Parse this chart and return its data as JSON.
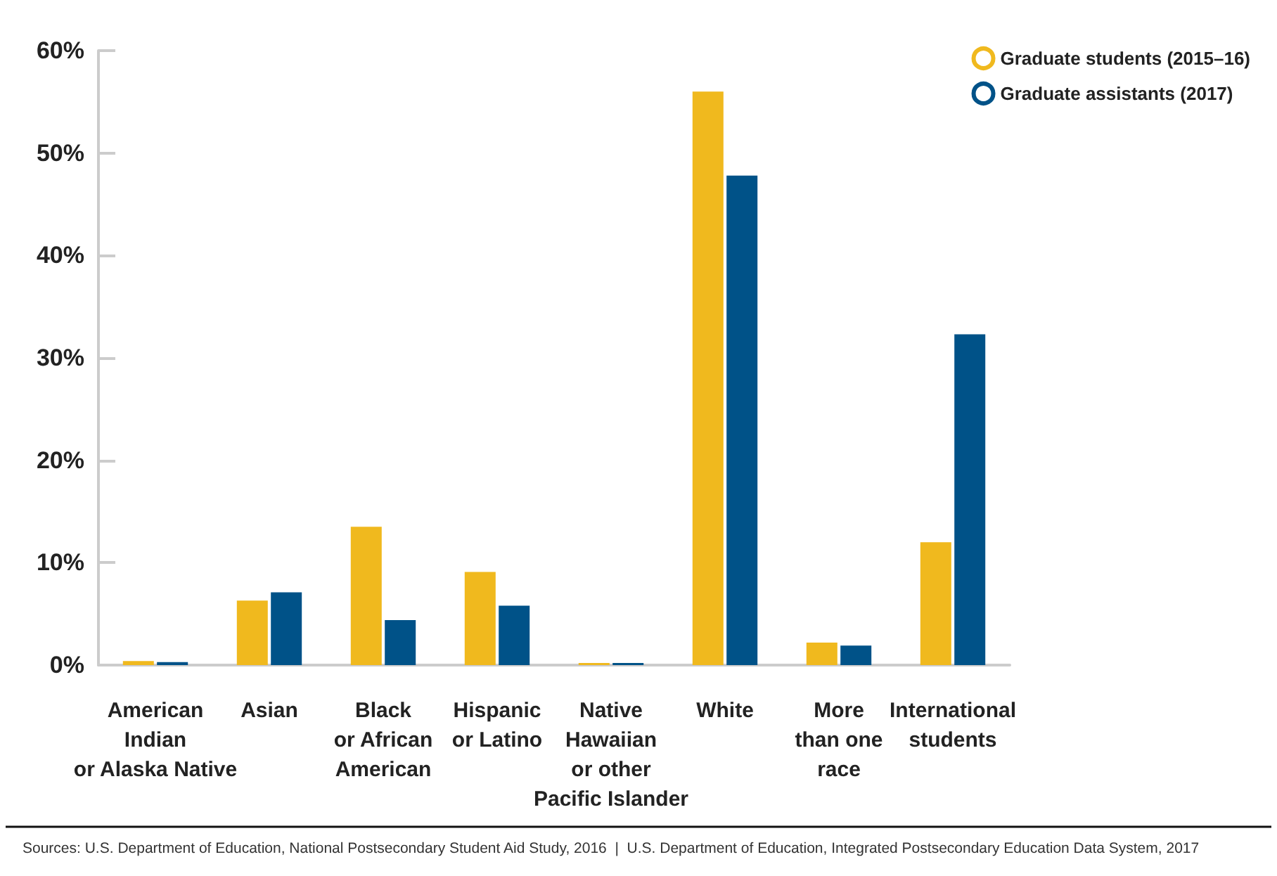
{
  "chart_data": {
    "type": "bar",
    "categories": [
      "American\nIndian\nor Alaska Native",
      "Asian",
      "Black\nor African\nAmerican",
      "Hispanic\nor Latino",
      "Native\nHawaiian\nor other\nPacific Islander",
      "White",
      "More\nthan one\nrace",
      "International\nstudents"
    ],
    "series": [
      {
        "name": "Graduate students (2015–16)",
        "color": "#f0b91e",
        "values": [
          0.4,
          6.3,
          13.5,
          9.1,
          0.2,
          56,
          2.2,
          12
        ]
      },
      {
        "name": "Graduate assistants (2017)",
        "color": "#005288",
        "values": [
          0.3,
          7.1,
          4.4,
          5.8,
          0.2,
          47.8,
          1.9,
          32.3
        ]
      }
    ],
    "ylim": [
      0,
      60
    ],
    "yticks": [
      {
        "value": 0,
        "label": "0%"
      },
      {
        "value": 10,
        "label": "10%"
      },
      {
        "value": 20,
        "label": "20%"
      },
      {
        "value": 30,
        "label": "30%"
      },
      {
        "value": 40,
        "label": "40%"
      },
      {
        "value": 50,
        "label": "50%"
      },
      {
        "value": 60,
        "label": "60%"
      }
    ],
    "grid": false,
    "legend": "top right",
    "annotations": [
      "Sources: U.S. Department of Education, National Postsecondary Student Aid Study, 2016  |  U.S. Department of Education, Integrated Postsecondary Education Data System, 2017"
    ]
  }
}
